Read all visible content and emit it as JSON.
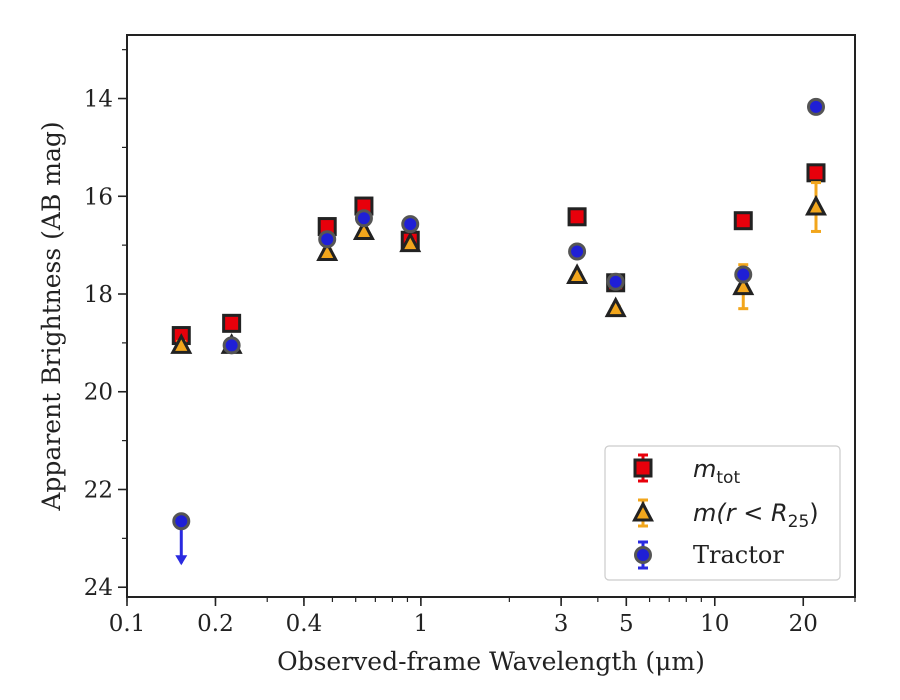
{
  "chart_data": {
    "type": "scatter",
    "xlabel": "Observed-frame Wavelength (μm)",
    "ylabel": "Apparent Brightness (AB mag)",
    "x_scale": "log",
    "y_inverted": true,
    "xlim": [
      0.1,
      30
    ],
    "ylim": [
      24.2,
      12.7
    ],
    "x_ticks": [
      {
        "value": 0.1,
        "label": "0.1"
      },
      {
        "value": 0.2,
        "label": "0.2"
      },
      {
        "value": 0.4,
        "label": "0.4"
      },
      {
        "value": 1,
        "label": "1"
      },
      {
        "value": 3,
        "label": "3"
      },
      {
        "value": 5,
        "label": "5"
      },
      {
        "value": 10,
        "label": "10"
      },
      {
        "value": 20,
        "label": "20"
      }
    ],
    "y_ticks": [
      {
        "value": 14,
        "label": "14"
      },
      {
        "value": 16,
        "label": "16"
      },
      {
        "value": 18,
        "label": "18"
      },
      {
        "value": 20,
        "label": "20"
      },
      {
        "value": 22,
        "label": "22"
      },
      {
        "value": 24,
        "label": "24"
      }
    ],
    "legend_position": "lower-right",
    "series": [
      {
        "name": "m_tot",
        "marker": "square",
        "color": "#e8000b",
        "edge_color": "#222222",
        "error_color": "#e8000b",
        "points": [
          {
            "x": 0.153,
            "y": 18.85,
            "yerr": 0.08
          },
          {
            "x": 0.227,
            "y": 18.6,
            "yerr": 0.06
          },
          {
            "x": 0.48,
            "y": 16.62,
            "yerr": 0.05
          },
          {
            "x": 0.64,
            "y": 16.2,
            "yerr": 0.05
          },
          {
            "x": 0.92,
            "y": 16.9,
            "yerr": 0.05
          },
          {
            "x": 3.4,
            "y": 16.42,
            "yerr": 0.05
          },
          {
            "x": 4.6,
            "y": 17.77,
            "yerr": 0.05
          },
          {
            "x": 12.5,
            "y": 16.5,
            "yerr": 0.05
          },
          {
            "x": 22.1,
            "y": 15.52,
            "yerr": 0.1
          }
        ]
      },
      {
        "name": "m(r < R25)",
        "marker": "triangle",
        "color": "#f2a61c",
        "edge_color": "#222222",
        "error_color": "#f2a61c",
        "points": [
          {
            "x": 0.153,
            "y": 19.05,
            "yerr": 0.08
          },
          {
            "x": 0.227,
            "y": 19.05,
            "yerr": 0.06
          },
          {
            "x": 0.48,
            "y": 17.15,
            "yerr": 0.05
          },
          {
            "x": 0.64,
            "y": 16.72,
            "yerr": 0.05
          },
          {
            "x": 0.92,
            "y": 16.97,
            "yerr": 0.05
          },
          {
            "x": 3.4,
            "y": 17.62,
            "yerr": 0.05
          },
          {
            "x": 4.6,
            "y": 18.3,
            "yerr": 0.05
          },
          {
            "x": 12.5,
            "y": 17.85,
            "yerr": 0.45
          },
          {
            "x": 22.1,
            "y": 16.22,
            "yerr": 0.5
          }
        ]
      },
      {
        "name": "Tractor",
        "marker": "circle",
        "color": "#1f1fd6",
        "edge_color": "#555555",
        "error_color": "#2a2ae0",
        "points": [
          {
            "x": 0.153,
            "y": 22.65,
            "yerr": 0,
            "upper_limit": true
          },
          {
            "x": 0.227,
            "y": 19.05,
            "yerr": 0.04
          },
          {
            "x": 0.48,
            "y": 16.88,
            "yerr": 0.04
          },
          {
            "x": 0.64,
            "y": 16.45,
            "yerr": 0.04
          },
          {
            "x": 0.92,
            "y": 16.57,
            "yerr": 0.04
          },
          {
            "x": 3.4,
            "y": 17.13,
            "yerr": 0.04
          },
          {
            "x": 4.6,
            "y": 17.75,
            "yerr": 0.04
          },
          {
            "x": 12.5,
            "y": 17.6,
            "yerr": 0.04
          },
          {
            "x": 22.1,
            "y": 14.17,
            "yerr": 0.04
          }
        ]
      }
    ]
  }
}
